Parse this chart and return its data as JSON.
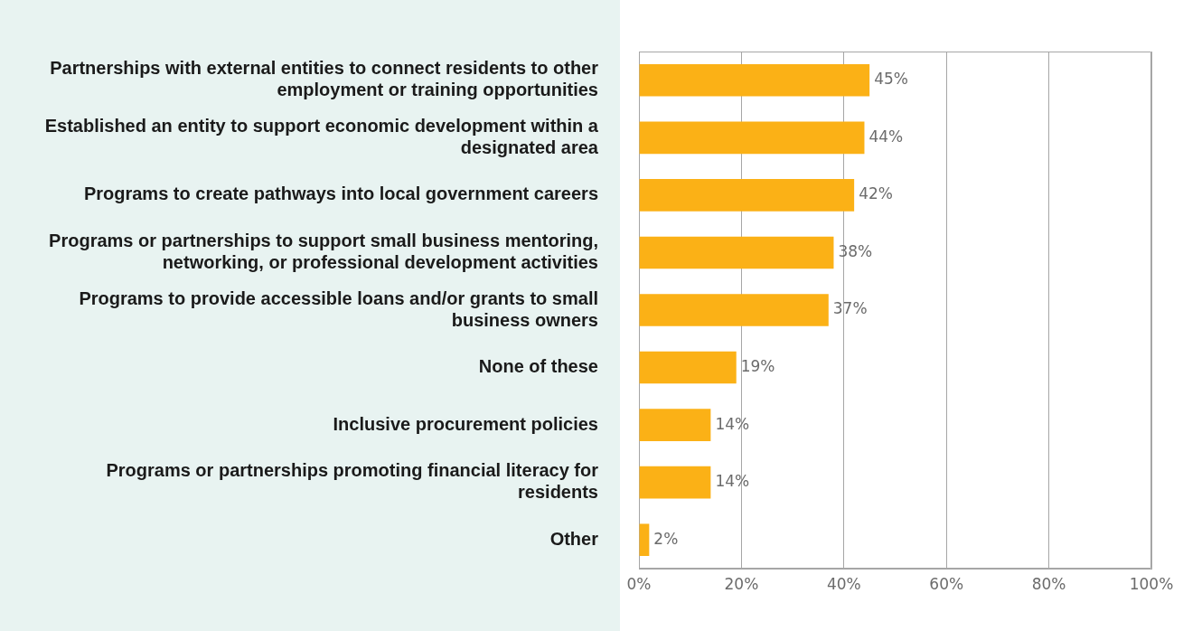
{
  "chart_data": {
    "type": "bar",
    "orientation": "horizontal",
    "categories": [
      "Partnerships with external entities to connect residents to other employment or training opportunities",
      "Established an entity to support economic development within a designated area",
      "Programs to create pathways into local government careers",
      "Programs or partnerships to support small business mentoring, networking, or professional development activities",
      "Programs to provide accessible loans and/or grants to small business owners",
      "None of these",
      "Inclusive procurement policies",
      "Programs or partnerships promoting financial literacy for residents",
      "Other"
    ],
    "values": [
      45,
      44,
      42,
      38,
      37,
      19,
      14,
      14,
      2
    ],
    "value_labels": [
      "45%",
      "44%",
      "42%",
      "38%",
      "37%",
      "19%",
      "14%",
      "14%",
      "2%"
    ],
    "color": "#fbb116",
    "xlim": [
      0,
      100
    ],
    "xticks": [
      {
        "value": 0,
        "label": "0%"
      },
      {
        "value": 20,
        "label": "20%"
      },
      {
        "value": 40,
        "label": "40%"
      },
      {
        "value": 60,
        "label": "60%"
      },
      {
        "value": 80,
        "label": "80%"
      },
      {
        "value": 100,
        "label": "100%"
      }
    ],
    "grid": "x",
    "legend": false
  }
}
